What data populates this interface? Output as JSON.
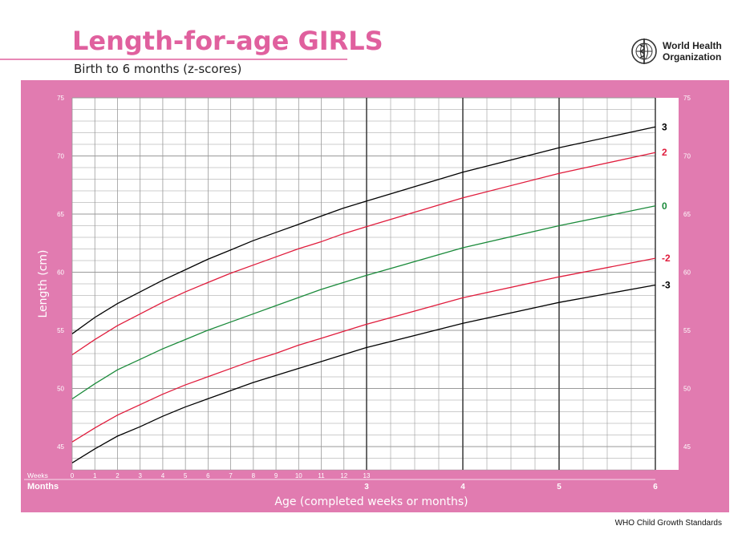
{
  "header": {
    "title": "Length-for-age GIRLS",
    "subtitle": "Birth to 6 months (z-scores)",
    "org_line1": "World Health",
    "org_line2": "Organization",
    "logo_icon": "who-emblem-icon"
  },
  "footer": {
    "text": "WHO Child Growth Standards"
  },
  "colors": {
    "accent": "#e0609e",
    "panel": "#e17bb0",
    "grid_minor": "#9a9a9a",
    "grid_major": "#444444",
    "series_black": "#000000",
    "series_red": "#e01c3c",
    "series_green": "#1a8a3a"
  },
  "chart_data": {
    "type": "line",
    "xlabel": "Age (completed weeks or months)",
    "ylabel": "Length (cm)",
    "ylim": [
      43,
      75
    ],
    "y_ticks": [
      45,
      50,
      55,
      60,
      65,
      70,
      75
    ],
    "y_ticks_right": [
      45,
      50,
      55,
      60,
      65,
      70,
      75
    ],
    "weeks_label": "Weeks",
    "months_label": "Months",
    "week_ticks": [
      "0",
      "1",
      "2",
      "3",
      "4",
      "5",
      "6",
      "7",
      "8",
      "9",
      "10",
      "11",
      "12",
      "13"
    ],
    "month_ticks": [
      "3",
      "4",
      "5",
      "6"
    ],
    "grid": true,
    "x_unit": "months",
    "x": [
      0,
      0.23,
      0.46,
      0.69,
      0.92,
      1.15,
      1.38,
      1.61,
      1.84,
      2.07,
      2.3,
      2.53,
      2.76,
      2.99,
      4,
      5,
      6
    ],
    "series": [
      {
        "name": "3",
        "color": "#000000",
        "values": [
          54.7,
          56.1,
          57.3,
          58.3,
          59.3,
          60.2,
          61.1,
          61.9,
          62.7,
          63.4,
          64.1,
          64.8,
          65.5,
          66.1,
          68.6,
          70.7,
          72.5
        ]
      },
      {
        "name": "2",
        "color": "#e01c3c",
        "values": [
          52.9,
          54.2,
          55.4,
          56.4,
          57.4,
          58.3,
          59.1,
          59.9,
          60.6,
          61.3,
          62.0,
          62.6,
          63.3,
          63.9,
          66.4,
          68.5,
          70.3
        ]
      },
      {
        "name": "0",
        "color": "#1a8a3a",
        "values": [
          49.1,
          50.4,
          51.6,
          52.5,
          53.4,
          54.2,
          55.0,
          55.7,
          56.4,
          57.1,
          57.8,
          58.5,
          59.1,
          59.7,
          62.1,
          64.0,
          65.7
        ]
      },
      {
        "name": "-2",
        "color": "#e01c3c",
        "values": [
          45.4,
          46.6,
          47.7,
          48.6,
          49.5,
          50.3,
          51.0,
          51.7,
          52.4,
          53.0,
          53.7,
          54.3,
          54.9,
          55.5,
          57.8,
          59.6,
          61.2
        ]
      },
      {
        "name": "-3",
        "color": "#000000",
        "values": [
          43.6,
          44.8,
          45.9,
          46.7,
          47.6,
          48.4,
          49.1,
          49.8,
          50.5,
          51.1,
          51.7,
          52.3,
          52.9,
          53.5,
          55.6,
          57.4,
          58.9
        ]
      }
    ]
  }
}
